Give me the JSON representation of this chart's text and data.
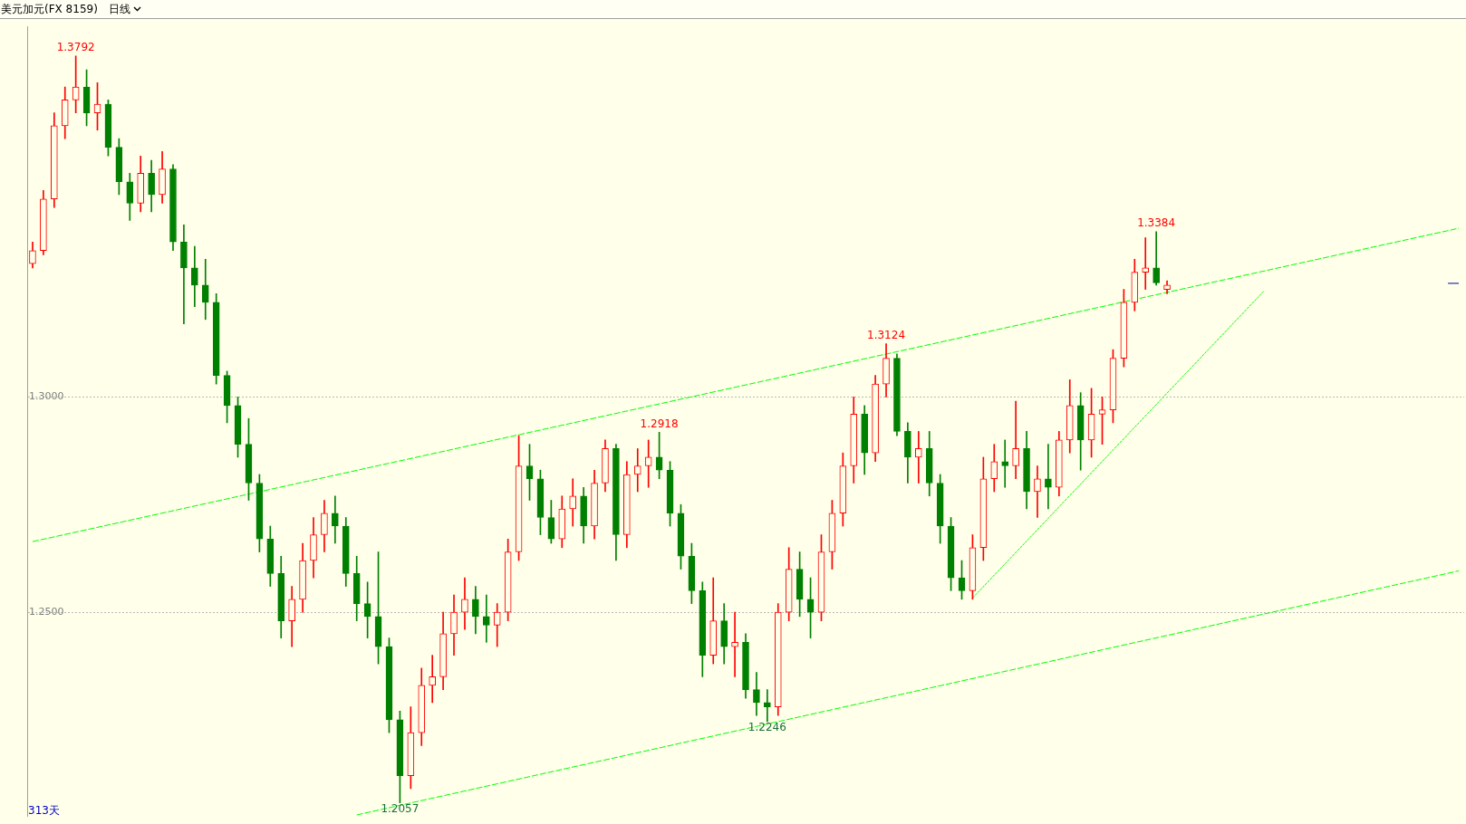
{
  "chart_data": {
    "type": "candlestick",
    "title": "美元加元(FX 8159)",
    "subtitle": "日线",
    "categories": [
      null,
      null,
      null,
      null,
      null,
      null,
      null,
      null,
      null,
      null,
      null,
      null,
      null,
      null,
      null,
      null,
      null,
      null,
      null,
      null,
      null,
      null,
      null,
      null,
      null,
      null,
      null,
      null,
      null,
      null,
      null,
      null,
      null,
      null,
      null,
      null,
      null,
      null,
      null,
      null,
      null,
      null,
      null,
      null,
      null,
      null,
      null,
      null,
      null,
      null,
      null,
      null,
      null,
      null,
      null,
      null,
      null,
      null,
      null,
      null,
      null,
      null,
      null,
      null,
      null,
      null,
      null,
      null,
      null,
      null,
      null,
      null,
      null,
      null,
      null,
      null,
      null,
      null,
      null,
      null,
      null,
      null,
      null,
      null,
      null,
      null,
      null,
      null,
      null,
      null,
      null,
      null,
      null,
      null,
      null,
      null,
      null,
      null,
      null,
      null,
      null,
      null,
      null,
      null,
      null,
      null,
      null,
      null,
      null,
      null,
      null,
      null,
      null,
      null,
      null,
      null,
      null,
      null,
      null,
      null,
      null,
      null,
      null,
      null,
      null,
      null,
      null,
      null,
      null,
      null,
      null,
      null,
      null
    ],
    "ohlc": [
      [
        1.331,
        1.336,
        1.33,
        1.334
      ],
      [
        1.334,
        1.348,
        1.333,
        1.346
      ],
      [
        1.346,
        1.366,
        1.344,
        1.363
      ],
      [
        1.363,
        1.372,
        1.36,
        1.369
      ],
      [
        1.369,
        1.3792,
        1.366,
        1.372
      ],
      [
        1.372,
        1.376,
        1.363,
        1.366
      ],
      [
        1.366,
        1.373,
        1.362,
        1.368
      ],
      [
        1.368,
        1.369,
        1.356,
        1.358
      ],
      [
        1.358,
        1.36,
        1.347,
        1.35
      ],
      [
        1.35,
        1.352,
        1.341,
        1.345
      ],
      [
        1.345,
        1.356,
        1.343,
        1.352
      ],
      [
        1.352,
        1.355,
        1.343,
        1.347
      ],
      [
        1.347,
        1.357,
        1.345,
        1.353
      ],
      [
        1.353,
        1.354,
        1.334,
        1.336
      ],
      [
        1.336,
        1.34,
        1.317,
        1.33
      ],
      [
        1.33,
        1.335,
        1.321,
        1.326
      ],
      [
        1.326,
        1.332,
        1.318,
        1.322
      ],
      [
        1.322,
        1.324,
        1.303,
        1.305
      ],
      [
        1.305,
        1.306,
        1.294,
        1.298
      ],
      [
        1.298,
        1.3,
        1.286,
        1.289
      ],
      [
        1.289,
        1.295,
        1.276,
        1.28
      ],
      [
        1.28,
        1.282,
        1.264,
        1.267
      ],
      [
        1.267,
        1.27,
        1.256,
        1.259
      ],
      [
        1.259,
        1.263,
        1.244,
        1.248
      ],
      [
        1.248,
        1.256,
        1.242,
        1.253
      ],
      [
        1.253,
        1.266,
        1.25,
        1.262
      ],
      [
        1.262,
        1.272,
        1.258,
        1.268
      ],
      [
        1.268,
        1.276,
        1.264,
        1.273
      ],
      [
        1.273,
        1.277,
        1.266,
        1.27
      ],
      [
        1.27,
        1.272,
        1.256,
        1.259
      ],
      [
        1.259,
        1.263,
        1.248,
        1.252
      ],
      [
        1.252,
        1.257,
        1.244,
        1.249
      ],
      [
        1.249,
        1.264,
        1.238,
        1.242
      ],
      [
        1.242,
        1.244,
        1.222,
        1.225
      ],
      [
        1.225,
        1.227,
        1.2057,
        1.212
      ],
      [
        1.212,
        1.228,
        1.209,
        1.222
      ],
      [
        1.222,
        1.237,
        1.219,
        1.233
      ],
      [
        1.233,
        1.24,
        1.229,
        1.235
      ],
      [
        1.235,
        1.25,
        1.232,
        1.245
      ],
      [
        1.245,
        1.254,
        1.24,
        1.25
      ],
      [
        1.25,
        1.258,
        1.246,
        1.253
      ],
      [
        1.253,
        1.256,
        1.245,
        1.249
      ],
      [
        1.249,
        1.254,
        1.243,
        1.247
      ],
      [
        1.247,
        1.252,
        1.242,
        1.25
      ],
      [
        1.25,
        1.267,
        1.248,
        1.264
      ],
      [
        1.264,
        1.291,
        1.262,
        1.284
      ],
      [
        1.284,
        1.289,
        1.276,
        1.281
      ],
      [
        1.281,
        1.283,
        1.268,
        1.272
      ],
      [
        1.272,
        1.276,
        1.266,
        1.267
      ],
      [
        1.267,
        1.277,
        1.265,
        1.274
      ],
      [
        1.274,
        1.281,
        1.27,
        1.277
      ],
      [
        1.277,
        1.279,
        1.266,
        1.27
      ],
      [
        1.27,
        1.283,
        1.267,
        1.28
      ],
      [
        1.28,
        1.29,
        1.278,
        1.288
      ],
      [
        1.288,
        1.289,
        1.262,
        1.268
      ],
      [
        1.268,
        1.285,
        1.265,
        1.282
      ],
      [
        1.282,
        1.288,
        1.278,
        1.284
      ],
      [
        1.284,
        1.29,
        1.279,
        1.286
      ],
      [
        1.286,
        1.2918,
        1.281,
        1.283
      ],
      [
        1.283,
        1.285,
        1.27,
        1.273
      ],
      [
        1.273,
        1.275,
        1.26,
        1.263
      ],
      [
        1.263,
        1.266,
        1.252,
        1.255
      ],
      [
        1.255,
        1.257,
        1.235,
        1.24
      ],
      [
        1.24,
        1.258,
        1.238,
        1.248
      ],
      [
        1.248,
        1.252,
        1.238,
        1.242
      ],
      [
        1.242,
        1.25,
        1.235,
        1.243
      ],
      [
        1.243,
        1.245,
        1.23,
        1.232
      ],
      [
        1.232,
        1.236,
        1.226,
        1.229
      ],
      [
        1.229,
        1.232,
        1.2246,
        1.228
      ],
      [
        1.228,
        1.252,
        1.226,
        1.25
      ],
      [
        1.25,
        1.265,
        1.248,
        1.26
      ],
      [
        1.26,
        1.264,
        1.249,
        1.253
      ],
      [
        1.253,
        1.258,
        1.244,
        1.25
      ],
      [
        1.25,
        1.268,
        1.248,
        1.264
      ],
      [
        1.264,
        1.276,
        1.26,
        1.273
      ],
      [
        1.273,
        1.287,
        1.27,
        1.284
      ],
      [
        1.284,
        1.3,
        1.28,
        1.296
      ],
      [
        1.296,
        1.298,
        1.282,
        1.287
      ],
      [
        1.287,
        1.305,
        1.285,
        1.303
      ],
      [
        1.303,
        1.3124,
        1.3,
        1.309
      ],
      [
        1.309,
        1.31,
        1.291,
        1.292
      ],
      [
        1.292,
        1.294,
        1.28,
        1.286
      ],
      [
        1.286,
        1.292,
        1.28,
        1.288
      ],
      [
        1.288,
        1.292,
        1.277,
        1.28
      ],
      [
        1.28,
        1.282,
        1.266,
        1.27
      ],
      [
        1.27,
        1.272,
        1.255,
        1.258
      ],
      [
        1.258,
        1.262,
        1.253,
        1.255
      ],
      [
        1.255,
        1.268,
        1.253,
        1.265
      ],
      [
        1.265,
        1.286,
        1.262,
        1.281
      ],
      [
        1.281,
        1.289,
        1.278,
        1.285
      ],
      [
        1.285,
        1.29,
        1.279,
        1.284
      ],
      [
        1.284,
        1.299,
        1.281,
        1.288
      ],
      [
        1.288,
        1.292,
        1.274,
        1.278
      ],
      [
        1.278,
        1.284,
        1.272,
        1.281
      ],
      [
        1.281,
        1.289,
        1.274,
        1.279
      ],
      [
        1.279,
        1.292,
        1.277,
        1.29
      ],
      [
        1.29,
        1.304,
        1.287,
        1.298
      ],
      [
        1.298,
        1.301,
        1.283,
        1.29
      ],
      [
        1.29,
        1.302,
        1.286,
        1.296
      ],
      [
        1.296,
        1.3,
        1.289,
        1.297
      ],
      [
        1.297,
        1.311,
        1.294,
        1.309
      ],
      [
        1.309,
        1.325,
        1.307,
        1.322
      ],
      [
        1.322,
        1.332,
        1.32,
        1.329
      ],
      [
        1.329,
        1.337,
        1.325,
        1.33
      ],
      [
        1.33,
        1.3384,
        1.326,
        1.3265
      ],
      [
        1.325,
        1.327,
        1.324,
        1.326
      ],
      null,
      null,
      null,
      null,
      null,
      null,
      null,
      null,
      null,
      null,
      null,
      null,
      null,
      null,
      null,
      null,
      null,
      null,
      null,
      null,
      null,
      null,
      null,
      null,
      null,
      null,
      null
    ],
    "colors": [
      "#ff0000",
      "#ff0000",
      "#ff0000",
      "#ff0000",
      "#ff0000",
      "#008000",
      "#ff0000",
      "#008000",
      "#008000",
      "#008000",
      "#ff0000",
      "#008000",
      "#ff0000",
      "#008000",
      "#008000",
      "#008000",
      "#008000",
      "#008000",
      "#008000",
      "#008000",
      "#008000",
      "#008000",
      "#008000",
      "#008000",
      "#ff0000",
      "#ff0000",
      "#ff0000",
      "#ff0000",
      "#008000",
      "#008000",
      "#008000",
      "#008000",
      "#008000",
      "#008000",
      "#008000",
      "#ff0000",
      "#ff0000",
      "#ff0000",
      "#ff0000",
      "#ff0000",
      "#ff0000",
      "#008000",
      "#008000",
      "#ff0000",
      "#ff0000",
      "#ff0000",
      "#008000",
      "#008000",
      "#008000",
      "#ff0000",
      "#ff0000",
      "#008000",
      "#ff0000",
      "#ff0000",
      "#008000",
      "#ff0000",
      "#ff0000",
      "#ff0000",
      "#008000",
      "#008000",
      "#008000",
      "#008000",
      "#008000",
      "#ff0000",
      "#008000",
      "#ff0000",
      "#008000",
      "#008000",
      "#008000",
      "#ff0000",
      "#ff0000",
      "#008000",
      "#008000",
      "#ff0000",
      "#ff0000",
      "#ff0000",
      "#ff0000",
      "#008000",
      "#ff0000",
      "#ff0000",
      "#008000",
      "#008000",
      "#ff0000",
      "#008000",
      "#008000",
      "#008000",
      "#008000",
      "#ff0000",
      "#ff0000",
      "#ff0000",
      "#008000",
      "#ff0000",
      "#008000",
      "#ff0000",
      "#008000",
      "#ff0000",
      "#ff0000",
      "#008000",
      "#ff0000",
      "#ff0000",
      "#ff0000",
      "#ff0000",
      "#ff0000",
      "#ff0000",
      "#008000",
      "#ff0000",
      null,
      null,
      null,
      null,
      null,
      null,
      null,
      null,
      null,
      null,
      null,
      null,
      null,
      null,
      null,
      null,
      null,
      null,
      null,
      null,
      null,
      null,
      null,
      null,
      null,
      null,
      null
    ],
    "series": [
      {
        "type": "line",
        "color": "#00ff00",
        "line_style": "dashed",
        "values": [
          1.2664,
          null,
          null,
          null,
          null,
          null,
          null,
          null,
          null,
          null,
          null,
          null,
          null,
          null,
          null,
          null,
          null,
          null,
          null,
          null,
          null,
          null,
          null,
          null,
          null,
          null,
          null,
          null,
          null,
          null,
          null,
          null,
          null,
          null,
          null,
          null,
          null,
          null,
          null,
          null,
          null,
          null,
          null,
          null,
          null,
          null,
          null,
          null,
          null,
          null,
          null,
          null,
          null,
          null,
          null,
          null,
          null,
          null,
          null,
          null,
          null,
          null,
          null,
          null,
          null,
          null,
          null,
          null,
          null,
          null,
          null,
          null,
          null,
          null,
          null,
          null,
          null,
          null,
          null,
          null,
          null,
          null,
          null,
          null,
          null,
          null,
          null,
          null,
          null,
          null,
          null,
          null,
          null,
          null,
          null,
          null,
          null,
          null,
          null,
          null,
          null,
          null,
          null,
          null,
          null,
          null,
          null,
          null,
          null,
          null,
          null,
          null,
          null,
          null,
          null,
          null,
          null,
          null,
          null,
          null,
          null,
          null,
          null,
          null,
          null,
          null,
          null,
          null,
          null,
          null,
          null,
          null,
          1.3392
        ]
      },
      {
        "type": "line",
        "color": "#00ff00",
        "line_style": "dashed",
        "values": [
          null,
          null,
          null,
          null,
          null,
          null,
          null,
          null,
          null,
          null,
          null,
          null,
          null,
          null,
          null,
          null,
          null,
          null,
          null,
          null,
          null,
          null,
          null,
          null,
          null,
          null,
          null,
          null,
          null,
          null,
          1.2029,
          null,
          null,
          null,
          null,
          null,
          null,
          null,
          null,
          null,
          null,
          null,
          null,
          null,
          null,
          null,
          null,
          null,
          null,
          null,
          null,
          null,
          null,
          null,
          null,
          null,
          null,
          null,
          null,
          null,
          null,
          null,
          null,
          null,
          null,
          null,
          null,
          null,
          null,
          null,
          null,
          null,
          null,
          null,
          null,
          null,
          null,
          null,
          null,
          null,
          null,
          null,
          null,
          null,
          null,
          null,
          null,
          null,
          null,
          null,
          null,
          null,
          null,
          null,
          null,
          null,
          null,
          null,
          null,
          null,
          null,
          null,
          null,
          null,
          null,
          null,
          null,
          null,
          null,
          null,
          null,
          null,
          null,
          null,
          null,
          null,
          null,
          null,
          null,
          null,
          null,
          null,
          null,
          null,
          null,
          null,
          null,
          null,
          null,
          null,
          null,
          null,
          1.2596
        ]
      },
      {
        "type": "line",
        "color": "#00ff00",
        "line_style": "dotted",
        "values": [
          null,
          null,
          null,
          null,
          null,
          null,
          null,
          null,
          null,
          null,
          null,
          null,
          null,
          null,
          null,
          null,
          null,
          null,
          null,
          null,
          null,
          null,
          null,
          null,
          null,
          null,
          null,
          null,
          null,
          null,
          null,
          null,
          null,
          null,
          null,
          null,
          null,
          null,
          null,
          null,
          null,
          null,
          null,
          null,
          null,
          null,
          null,
          null,
          null,
          null,
          null,
          null,
          null,
          null,
          null,
          null,
          null,
          null,
          null,
          null,
          null,
          null,
          null,
          null,
          null,
          null,
          null,
          null,
          null,
          null,
          null,
          null,
          null,
          null,
          null,
          null,
          null,
          null,
          null,
          null,
          null,
          null,
          null,
          null,
          null,
          null,
          null,
          1.2533,
          null,
          null,
          null,
          null,
          null,
          null,
          null,
          null,
          null,
          null,
          null,
          null,
          null,
          null,
          null,
          null,
          null,
          null,
          null,
          null,
          null,
          null,
          null,
          null,
          null,
          null,
          1.3247,
          null,
          null,
          null,
          null,
          null,
          null,
          null,
          null,
          null,
          null,
          null,
          null,
          null,
          null,
          null,
          null,
          null,
          null
        ]
      },
      {
        "type": "line",
        "color": "#0000a0",
        "line_style": "solid",
        "values": [
          null,
          null,
          null,
          null,
          null,
          null,
          null,
          null,
          null,
          null,
          null,
          null,
          null,
          null,
          null,
          null,
          null,
          null,
          null,
          null,
          null,
          null,
          null,
          null,
          null,
          null,
          null,
          null,
          null,
          null,
          null,
          null,
          null,
          null,
          null,
          null,
          null,
          null,
          null,
          null,
          null,
          null,
          null,
          null,
          null,
          null,
          null,
          null,
          null,
          null,
          null,
          null,
          null,
          null,
          null,
          null,
          null,
          null,
          null,
          null,
          null,
          null,
          null,
          null,
          null,
          null,
          null,
          null,
          null,
          null,
          null,
          null,
          null,
          null,
          null,
          null,
          null,
          null,
          null,
          null,
          null,
          null,
          null,
          null,
          null,
          null,
          null,
          null,
          null,
          null,
          null,
          null,
          null,
          null,
          null,
          null,
          null,
          null,
          null,
          null,
          null,
          null,
          null,
          null,
          null,
          null,
          null,
          null,
          null,
          null,
          null,
          null,
          null,
          null,
          null,
          null,
          null,
          null,
          null,
          null,
          null,
          null,
          null,
          null,
          null,
          null,
          null,
          null,
          null,
          null,
          null,
          1.3264,
          1.3264
        ]
      }
    ],
    "ylim": [
      1.2026,
      1.386
    ],
    "yticks": [
      {
        "value": 1.25,
        "label": "1.2500"
      },
      {
        "value": 1.3,
        "label": "1.3000"
      }
    ],
    "grid": "y",
    "tick_labels": "y",
    "annotations": [
      {
        "text": "1.3792",
        "y": 1.3792
      },
      {
        "text": "1.2057",
        "y": 1.2057
      },
      {
        "text": "1.2918",
        "y": 1.2918
      },
      {
        "text": "1.2246",
        "y": 1.2246
      },
      {
        "text": "1.3124",
        "y": 1.3124
      },
      {
        "text": "1.3384",
        "y": 1.3384
      },
      "313天"
    ]
  }
}
